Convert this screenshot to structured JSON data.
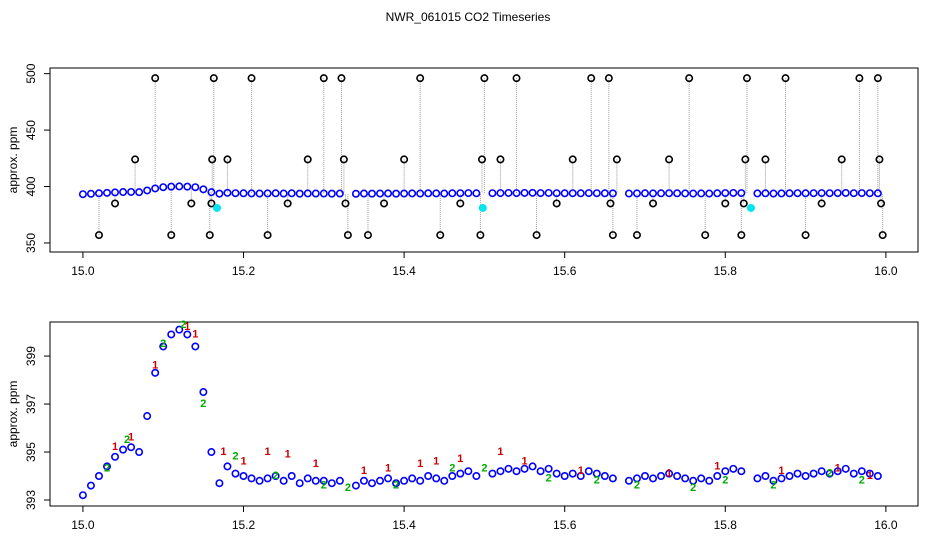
{
  "title": "NWR_061015  CO2 Timeseries",
  "chart_data": [
    {
      "type": "scatter",
      "ylabel": "approx. ppm",
      "xlim": [
        14.959,
        16.04
      ],
      "ylim": [
        342,
        505
      ],
      "xticks": [
        {
          "value": 15,
          "label": "15.0"
        },
        {
          "value": 15.2,
          "label": "15.2"
        },
        {
          "value": 15.4,
          "label": "15.4"
        },
        {
          "value": 15.6,
          "label": "15.6"
        },
        {
          "value": 15.8,
          "label": "15.8"
        },
        {
          "value": 16,
          "label": "16.0"
        }
      ],
      "yticks": [
        350,
        400,
        450,
        500
      ],
      "series": [
        {
          "color": "#0000ff",
          "marker": "circle",
          "x": [
            15.0,
            15.01,
            15.02,
            15.03,
            15.04,
            15.05,
            15.06,
            15.07,
            15.08,
            15.09,
            15.1,
            15.11,
            15.12,
            15.13,
            15.14,
            15.15,
            15.16,
            15.17,
            15.18,
            15.19,
            15.2,
            15.21,
            15.22,
            15.23,
            15.24,
            15.25,
            15.26,
            15.27,
            15.28,
            15.29,
            15.3,
            15.31,
            15.32,
            15.34,
            15.35,
            15.36,
            15.37,
            15.38,
            15.39,
            15.4,
            15.41,
            15.42,
            15.43,
            15.44,
            15.45,
            15.46,
            15.47,
            15.48,
            15.49,
            15.51,
            15.52,
            15.53,
            15.54,
            15.55,
            15.56,
            15.57,
            15.58,
            15.59,
            15.6,
            15.61,
            15.62,
            15.63,
            15.64,
            15.65,
            15.66,
            15.68,
            15.69,
            15.7,
            15.71,
            15.72,
            15.73,
            15.74,
            15.75,
            15.76,
            15.77,
            15.78,
            15.79,
            15.8,
            15.81,
            15.82,
            15.84,
            15.85,
            15.86,
            15.87,
            15.88,
            15.89,
            15.9,
            15.91,
            15.92,
            15.93,
            15.94,
            15.95,
            15.96,
            15.97,
            15.98,
            15.99
          ],
          "values": [
            393.2,
            393.6,
            394.0,
            394.4,
            394.8,
            395.1,
            395.2,
            395.0,
            396.5,
            398.3,
            399.4,
            399.9,
            400.1,
            399.9,
            399.4,
            397.5,
            395.0,
            393.7,
            394.4,
            394.1,
            394.0,
            393.9,
            393.8,
            393.9,
            394.0,
            393.8,
            394.0,
            393.7,
            393.9,
            393.8,
            393.8,
            393.7,
            393.8,
            393.6,
            393.8,
            393.7,
            393.8,
            393.9,
            393.7,
            393.8,
            393.9,
            393.8,
            394.0,
            393.9,
            393.8,
            394.0,
            394.1,
            394.2,
            394.0,
            394.1,
            394.2,
            394.3,
            394.2,
            394.3,
            394.4,
            394.2,
            394.3,
            394.1,
            394.0,
            394.1,
            394.0,
            394.2,
            394.1,
            394.0,
            393.9,
            393.8,
            393.9,
            394.0,
            393.9,
            394.0,
            394.1,
            394.0,
            393.9,
            393.8,
            393.9,
            393.8,
            394.0,
            394.2,
            394.3,
            394.2,
            393.9,
            394.0,
            393.8,
            393.9,
            394.0,
            394.1,
            394.0,
            394.1,
            394.2,
            394.1,
            394.2,
            394.3,
            394.1,
            394.2,
            394.1,
            394.0
          ]
        },
        {
          "color": "#000000",
          "marker": "circle",
          "x": [
            15.02,
            15.04,
            15.065,
            15.09,
            15.11,
            15.135,
            15.158,
            15.16,
            15.161,
            15.163,
            15.18,
            15.21,
            15.23,
            15.255,
            15.28,
            15.3,
            15.322,
            15.325,
            15.327,
            15.33,
            15.355,
            15.375,
            15.4,
            15.42,
            15.445,
            15.47,
            15.495,
            15.497,
            15.5,
            15.52,
            15.54,
            15.565,
            15.59,
            15.61,
            15.633,
            15.655,
            15.657,
            15.66,
            15.665,
            15.69,
            15.71,
            15.73,
            15.755,
            15.775,
            15.8,
            15.82,
            15.823,
            15.825,
            15.827,
            15.85,
            15.875,
            15.9,
            15.92,
            15.945,
            15.967,
            15.99,
            15.992,
            15.994,
            15.996
          ],
          "values": [
            357,
            385,
            424,
            496,
            357,
            385,
            357,
            385,
            424,
            496,
            424,
            496,
            357,
            385,
            424,
            496,
            496,
            424,
            385,
            357,
            357,
            385,
            424,
            496,
            357,
            385,
            357,
            424,
            496,
            424,
            496,
            357,
            385,
            424,
            496,
            496,
            385,
            357,
            424,
            357,
            385,
            424,
            496,
            357,
            385,
            357,
            385,
            424,
            496,
            424,
            496,
            357,
            385,
            424,
            496,
            496,
            424,
            385,
            357
          ]
        },
        {
          "color": "#00e5ee",
          "marker": "dot",
          "x": [
            15.167,
            15.498,
            15.832
          ],
          "values": [
            381,
            381,
            381
          ]
        }
      ]
    },
    {
      "type": "scatter",
      "ylabel": "approx. ppm",
      "xlim": [
        14.959,
        16.04
      ],
      "ylim": [
        392.75,
        400.42
      ],
      "xticks": [
        {
          "value": 15,
          "label": "15.0"
        },
        {
          "value": 15.2,
          "label": "15.2"
        },
        {
          "value": 15.4,
          "label": "15.4"
        },
        {
          "value": 15.6,
          "label": "15.6"
        },
        {
          "value": 15.8,
          "label": "15.8"
        },
        {
          "value": 16,
          "label": "16.0"
        }
      ],
      "yticks": [
        393,
        395,
        397,
        399
      ],
      "series": [
        {
          "color": "#0000ff",
          "marker": "circle",
          "x": [
            15.0,
            15.01,
            15.02,
            15.03,
            15.04,
            15.05,
            15.06,
            15.07,
            15.08,
            15.09,
            15.1,
            15.11,
            15.12,
            15.13,
            15.14,
            15.15,
            15.16,
            15.17,
            15.18,
            15.19,
            15.2,
            15.21,
            15.22,
            15.23,
            15.24,
            15.25,
            15.26,
            15.27,
            15.28,
            15.29,
            15.3,
            15.31,
            15.32,
            15.34,
            15.35,
            15.36,
            15.37,
            15.38,
            15.39,
            15.4,
            15.41,
            15.42,
            15.43,
            15.44,
            15.45,
            15.46,
            15.47,
            15.48,
            15.49,
            15.51,
            15.52,
            15.53,
            15.54,
            15.55,
            15.56,
            15.57,
            15.58,
            15.59,
            15.6,
            15.61,
            15.62,
            15.63,
            15.64,
            15.65,
            15.66,
            15.68,
            15.69,
            15.7,
            15.71,
            15.72,
            15.73,
            15.74,
            15.75,
            15.76,
            15.77,
            15.78,
            15.79,
            15.8,
            15.81,
            15.82,
            15.84,
            15.85,
            15.86,
            15.87,
            15.88,
            15.89,
            15.9,
            15.91,
            15.92,
            15.93,
            15.94,
            15.95,
            15.96,
            15.97,
            15.98,
            15.99
          ],
          "values": [
            393.2,
            393.6,
            394.0,
            394.4,
            394.8,
            395.1,
            395.2,
            395.0,
            396.5,
            398.3,
            399.4,
            399.9,
            400.1,
            399.9,
            399.4,
            397.5,
            395.0,
            393.7,
            394.4,
            394.1,
            394.0,
            393.9,
            393.8,
            393.9,
            394.0,
            393.8,
            394.0,
            393.7,
            393.9,
            393.8,
            393.8,
            393.7,
            393.8,
            393.6,
            393.8,
            393.7,
            393.8,
            393.9,
            393.7,
            393.8,
            393.9,
            393.8,
            394.0,
            393.9,
            393.8,
            394.0,
            394.1,
            394.2,
            394.0,
            394.1,
            394.2,
            394.3,
            394.2,
            394.3,
            394.4,
            394.2,
            394.3,
            394.1,
            394.0,
            394.1,
            394.0,
            394.2,
            394.1,
            394.0,
            393.9,
            393.8,
            393.9,
            394.0,
            393.9,
            394.0,
            394.1,
            394.0,
            393.9,
            393.8,
            393.9,
            393.8,
            394.0,
            394.2,
            394.3,
            394.2,
            393.9,
            394.0,
            393.8,
            393.9,
            394.0,
            394.1,
            394.0,
            394.1,
            394.2,
            394.1,
            394.2,
            394.3,
            394.1,
            394.2,
            394.1,
            394.0
          ]
        },
        {
          "color": "#cc0000",
          "marker": "1",
          "x": [
            15.04,
            15.06,
            15.09,
            15.13,
            15.14,
            15.175,
            15.2,
            15.23,
            15.255,
            15.29,
            15.35,
            15.38,
            15.42,
            15.44,
            15.47,
            15.52,
            15.55,
            15.62,
            15.73,
            15.79,
            15.87,
            15.94,
            15.98
          ],
          "values": [
            395.2,
            395.6,
            398.6,
            400.2,
            399.9,
            395.0,
            394.6,
            395.0,
            394.9,
            394.5,
            394.2,
            394.3,
            394.5,
            394.6,
            394.7,
            395.0,
            394.6,
            394.2,
            394.1,
            394.4,
            394.2,
            394.3,
            394.0
          ]
        },
        {
          "color": "#00aa00",
          "marker": "2",
          "x": [
            15.03,
            15.055,
            15.1,
            15.125,
            15.15,
            15.19,
            15.24,
            15.3,
            15.33,
            15.39,
            15.46,
            15.5,
            15.58,
            15.64,
            15.69,
            15.76,
            15.8,
            15.86,
            15.93,
            15.97
          ],
          "values": [
            394.3,
            395.5,
            399.5,
            400.3,
            397.0,
            394.8,
            394.0,
            393.6,
            393.5,
            393.6,
            394.3,
            394.3,
            393.9,
            393.8,
            393.6,
            393.5,
            393.8,
            393.6,
            394.1,
            393.8
          ]
        }
      ]
    }
  ]
}
